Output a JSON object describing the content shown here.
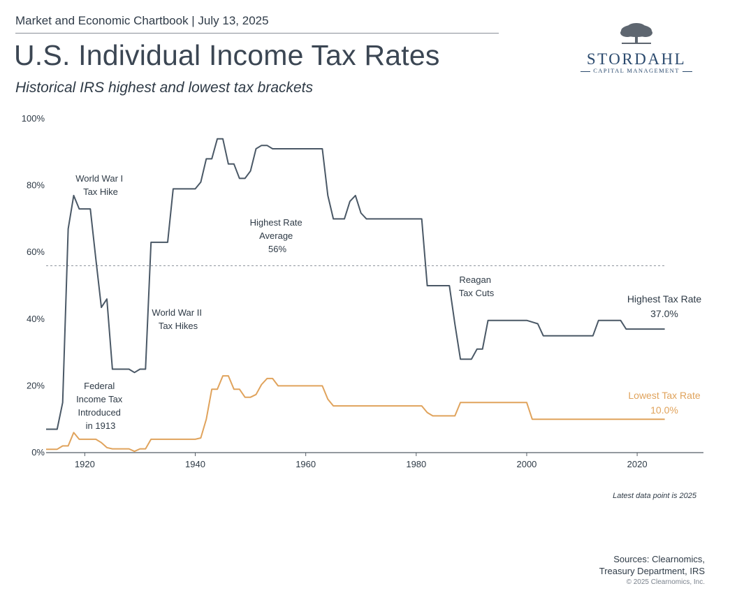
{
  "header": {
    "chartbook": "Market and Economic Chartbook | July 13, 2025",
    "title": "U.S. Individual Income Tax Rates",
    "subtitle": "Historical IRS highest and lowest tax brackets"
  },
  "logo": {
    "name": "STORDAHL",
    "tagline": "CAPITAL MANAGEMENT"
  },
  "colors": {
    "highest": "#4a5866",
    "lowest": "#e0a35c",
    "axis": "#555d66",
    "text": "#2e3a46"
  },
  "chart_data": {
    "type": "line",
    "title": "U.S. Individual Income Tax Rates",
    "xlabel": "",
    "ylabel": "",
    "xlim": [
      1913,
      2032
    ],
    "ylim": [
      0,
      100
    ],
    "x_ticks": [
      1920,
      1940,
      1960,
      1980,
      2000,
      2020
    ],
    "x_tick_labels": [
      "1920",
      "1940",
      "1960",
      "1980",
      "2000",
      "2020"
    ],
    "y_ticks": [
      0,
      20,
      40,
      60,
      80,
      100
    ],
    "y_tick_labels": [
      "0%",
      "20%",
      "40%",
      "60%",
      "80%",
      "100%"
    ],
    "grid": false,
    "series": [
      {
        "name": "Highest Tax Rate",
        "color": "#4a5866",
        "end_label": "Highest Tax Rate",
        "end_value_label": "37.0%",
        "points": [
          [
            1913,
            7
          ],
          [
            1915,
            7
          ],
          [
            1916,
            15
          ],
          [
            1917,
            67
          ],
          [
            1918,
            77
          ],
          [
            1919,
            73
          ],
          [
            1921,
            73
          ],
          [
            1922,
            58
          ],
          [
            1923,
            43.5
          ],
          [
            1924,
            46
          ],
          [
            1925,
            25
          ],
          [
            1928,
            25
          ],
          [
            1929,
            24
          ],
          [
            1930,
            25
          ],
          [
            1931,
            25
          ],
          [
            1932,
            63
          ],
          [
            1935,
            63
          ],
          [
            1936,
            79
          ],
          [
            1940,
            79
          ],
          [
            1941,
            81
          ],
          [
            1942,
            88
          ],
          [
            1943,
            88
          ],
          [
            1944,
            94
          ],
          [
            1945,
            94
          ],
          [
            1946,
            86.45
          ],
          [
            1947,
            86.45
          ],
          [
            1948,
            82.13
          ],
          [
            1949,
            82.13
          ],
          [
            1950,
            84.36
          ],
          [
            1951,
            91
          ],
          [
            1952,
            92
          ],
          [
            1953,
            92
          ],
          [
            1954,
            91
          ],
          [
            1963,
            91
          ],
          [
            1964,
            77
          ],
          [
            1965,
            70
          ],
          [
            1967,
            70
          ],
          [
            1968,
            75.25
          ],
          [
            1969,
            77
          ],
          [
            1970,
            71.75
          ],
          [
            1971,
            70
          ],
          [
            1981,
            70
          ],
          [
            1982,
            50
          ],
          [
            1986,
            50
          ],
          [
            1987,
            38.5
          ],
          [
            1988,
            28
          ],
          [
            1990,
            28
          ],
          [
            1991,
            31
          ],
          [
            1992,
            31
          ],
          [
            1993,
            39.6
          ],
          [
            2000,
            39.6
          ],
          [
            2001,
            39.1
          ],
          [
            2002,
            38.6
          ],
          [
            2003,
            35
          ],
          [
            2012,
            35
          ],
          [
            2013,
            39.6
          ],
          [
            2017,
            39.6
          ],
          [
            2018,
            37
          ],
          [
            2025,
            37
          ]
        ]
      },
      {
        "name": "Lowest Tax Rate",
        "color": "#e0a35c",
        "end_label": "Lowest Tax Rate",
        "end_value_label": "10.0%",
        "points": [
          [
            1913,
            1
          ],
          [
            1915,
            1
          ],
          [
            1916,
            2
          ],
          [
            1917,
            2
          ],
          [
            1918,
            6
          ],
          [
            1919,
            4
          ],
          [
            1922,
            4
          ],
          [
            1923,
            3
          ],
          [
            1924,
            1.5
          ],
          [
            1925,
            1.125
          ],
          [
            1928,
            1.125
          ],
          [
            1929,
            0.375
          ],
          [
            1930,
            1.125
          ],
          [
            1931,
            1.125
          ],
          [
            1932,
            4
          ],
          [
            1940,
            4
          ],
          [
            1941,
            4.4
          ],
          [
            1942,
            10
          ],
          [
            1943,
            19
          ],
          [
            1944,
            19
          ],
          [
            1945,
            23
          ],
          [
            1946,
            23
          ],
          [
            1947,
            19
          ],
          [
            1948,
            19
          ],
          [
            1949,
            16.6
          ],
          [
            1950,
            16.6
          ],
          [
            1951,
            17.4
          ],
          [
            1952,
            20.4
          ],
          [
            1953,
            22.2
          ],
          [
            1954,
            22.2
          ],
          [
            1955,
            20
          ],
          [
            1963,
            20
          ],
          [
            1964,
            16
          ],
          [
            1965,
            14
          ],
          [
            1981,
            14
          ],
          [
            1982,
            12
          ],
          [
            1983,
            11
          ],
          [
            1987,
            11
          ],
          [
            1988,
            15
          ],
          [
            2000,
            15
          ],
          [
            2001,
            10
          ],
          [
            2025,
            10
          ]
        ]
      }
    ],
    "reference_lines": [
      {
        "value": 56,
        "style": "dashed",
        "label": "Highest Rate Average 56%"
      }
    ],
    "annotations": [
      {
        "id": "ww1",
        "lines": [
          "World War I",
          "Tax Hike"
        ]
      },
      {
        "id": "fed",
        "lines": [
          "Federal",
          "Income Tax",
          "Introduced",
          "in 1913"
        ]
      },
      {
        "id": "ww2",
        "lines": [
          "World War II",
          "Tax Hikes"
        ]
      },
      {
        "id": "avg",
        "lines": [
          "Highest Rate",
          "Average",
          "56%"
        ]
      },
      {
        "id": "reagan",
        "lines": [
          "Reagan",
          "Tax Cuts"
        ]
      }
    ]
  },
  "footer": {
    "latest": "Latest data point is 2025",
    "sources_line1": "Sources: Clearnomics,",
    "sources_line2": "Treasury Department, IRS",
    "copyright": "© 2025 Clearnomics, Inc."
  }
}
